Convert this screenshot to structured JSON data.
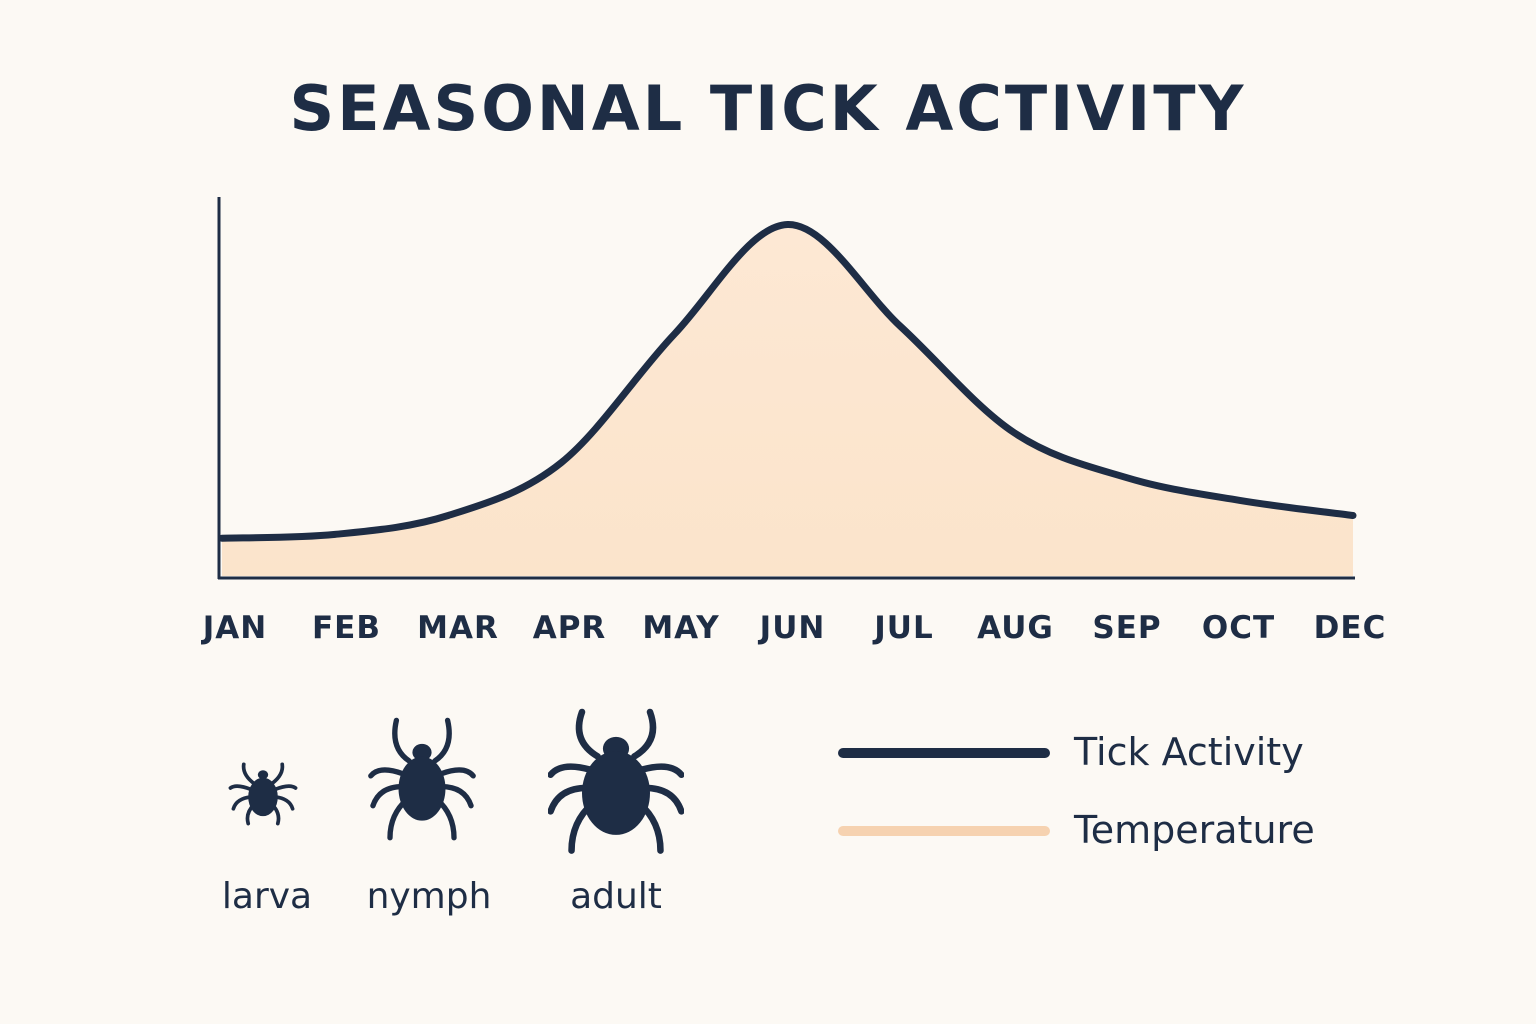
{
  "chart_data": {
    "type": "area",
    "title": "SEASONAL TICK ACTIVITY",
    "categories": [
      "JAN",
      "FEB",
      "MAR",
      "APR",
      "MAY",
      "JUN",
      "JUL",
      "AUG",
      "SEP",
      "OCT",
      "DEC"
    ],
    "series": [
      {
        "name": "Tick Activity",
        "values": [
          10,
          11,
          16,
          30,
          64,
          93,
          66,
          38,
          26,
          20,
          16
        ]
      }
    ],
    "ylim": [
      0,
      100
    ],
    "xlabel": "",
    "ylabel": "",
    "grid": false,
    "legend_placement": "bottom-right"
  },
  "legend": {
    "items": [
      {
        "label": "Tick Activity",
        "color": "#1e2d45"
      },
      {
        "label": "Temperature",
        "color": "#f6d2b0"
      }
    ]
  },
  "stages": [
    {
      "label": "larva",
      "icon": "tick-larva-icon"
    },
    {
      "label": "nymph",
      "icon": "tick-nymph-icon"
    },
    {
      "label": "adult",
      "icon": "tick-adult-icon"
    }
  ],
  "colors": {
    "line": "#1e2d45",
    "fill": "#fce6d0",
    "background": "#fcf9f4"
  }
}
